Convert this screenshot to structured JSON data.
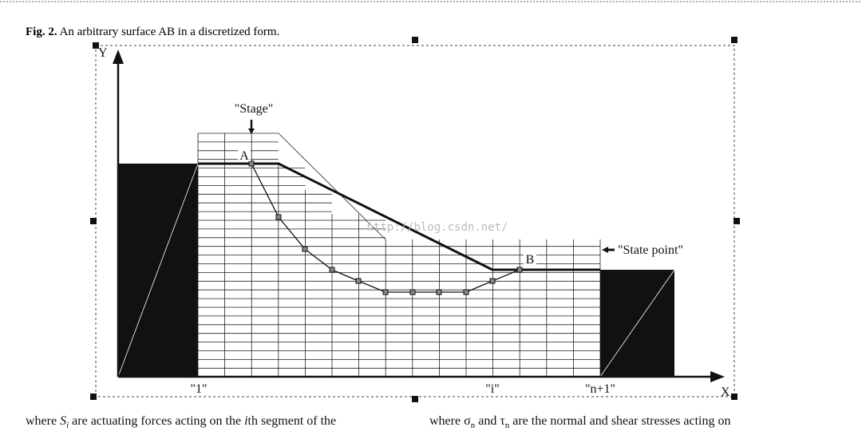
{
  "caption": {
    "label": "Fig. 2.",
    "text": "An arbitrary surface AB in a discretized form."
  },
  "figure": {
    "y_axis": "Y",
    "x_axis": "X",
    "stage": "\"Stage\"",
    "point_a": "A",
    "point_b": "B",
    "state_point": "\"State point\"",
    "column_labels": [
      "\"1\"",
      "\"i\"",
      "\"n+1\""
    ],
    "watermark": "http://blog.csdn.net/"
  },
  "body": {
    "left": [
      "where ",
      "S",
      "i",
      " are actuating forces acting on the ",
      "i",
      "th segment of the"
    ],
    "right": [
      "where σ",
      "n",
      " and τ",
      "n",
      " are the normal and shear stresses acting on"
    ]
  }
}
